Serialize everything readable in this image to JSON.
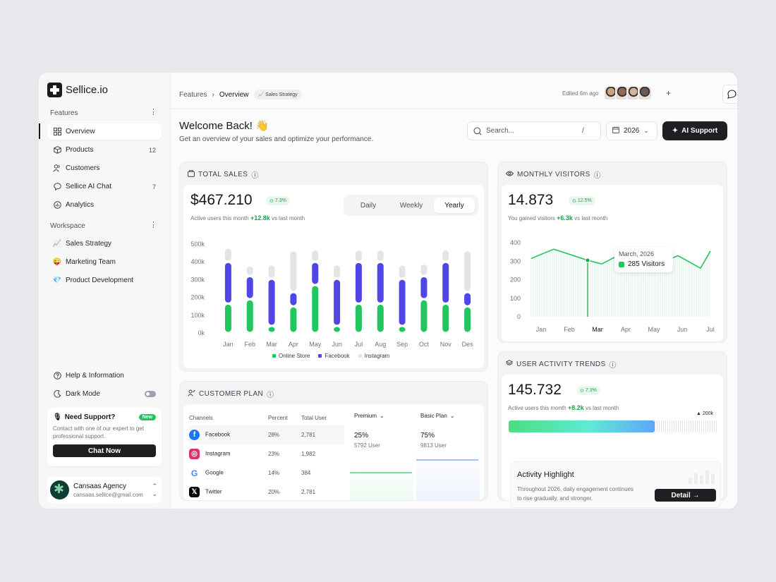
{
  "app": {
    "name": "Sellice.io"
  },
  "sidebar": {
    "features_label": "Features",
    "features": [
      {
        "label": "Overview",
        "icon": "grid-icon",
        "badge": ""
      },
      {
        "label": "Products",
        "icon": "box-icon",
        "badge": "12"
      },
      {
        "label": "Customers",
        "icon": "users-icon",
        "badge": ""
      },
      {
        "label": "Sellice AI Chat",
        "icon": "chat-icon",
        "badge": "7"
      },
      {
        "label": "Analytics",
        "icon": "analytics-icon",
        "badge": ""
      }
    ],
    "workspace_label": "Workspace",
    "workspaces": [
      {
        "label": "Sales Strategy",
        "emoji": "📈"
      },
      {
        "label": "Marketing Team",
        "emoji": "😜"
      },
      {
        "label": "Product Development",
        "emoji": "💎"
      }
    ],
    "help_label": "Help & Information",
    "dark_mode_label": "Dark Mode",
    "support": {
      "title": "Need Support?",
      "badge": "New",
      "text": "Contact with one of our expert to get professional support.",
      "button": "Chat Now"
    },
    "account": {
      "name": "Cansaas Agency",
      "email": "cansaas.sellice@gmail.com"
    }
  },
  "topbar": {
    "crumb_features": "Features",
    "crumb_overview": "Overview",
    "crumb_chip": "📈 Sales Strategy",
    "edited": "Edited 6m ago",
    "avatar_colors": [
      "#c9a27e",
      "#8f6b55",
      "#d4b5a0",
      "#6b5a52"
    ]
  },
  "welcome": {
    "title": "Welcome Back! 👋",
    "subtitle": "Get an overview of your sales and optimize your performance.",
    "search_placeholder": "Search...",
    "search_shortcut": "/",
    "year": "2026",
    "ai_button": "AI Support"
  },
  "total_sales": {
    "title": "TOTAL SALES",
    "value": "$467.210",
    "pct": "7.3%",
    "sub_prefix": "Active users this month",
    "sub_delta": "+12.8k",
    "sub_suffix": "vs last month",
    "tabs": [
      "Daily",
      "Weekly",
      "Yearly"
    ],
    "active_tab": "Yearly",
    "legend": [
      {
        "name": "Online Store",
        "color": "#22c55e"
      },
      {
        "name": "Facebook",
        "color": "#4f46e5"
      },
      {
        "name": "Instagram",
        "color": "#e4e4e7"
      }
    ]
  },
  "monthly_visitors": {
    "title": "MONTHLY VISITORS",
    "value": "14.873",
    "pct": "12.5%",
    "sub_prefix": "You gained visitors",
    "sub_delta": "+6.3k",
    "sub_suffix": "vs last month",
    "tooltip_date": "March, 2026",
    "tooltip_value": "285 Visitors"
  },
  "customer_plan": {
    "title": "CUSTOMER PLAN",
    "headers": [
      "Channels",
      "Percent",
      "Total User"
    ],
    "rows": [
      {
        "name": "Facebook",
        "percent": "28%",
        "users": "2,781",
        "icon": "facebook-icon",
        "color": "#1877f2"
      },
      {
        "name": "Instagram",
        "percent": "23%",
        "users": "1,982",
        "icon": "instagram-icon",
        "color": "#e1306c"
      },
      {
        "name": "Google",
        "percent": "14%",
        "users": "384",
        "icon": "google-icon",
        "color": "#4285f4"
      },
      {
        "name": "Twitter",
        "percent": "20%",
        "users": "2,781",
        "icon": "x-icon",
        "color": "#000000"
      }
    ],
    "plans": [
      {
        "name": "Premium",
        "percent": "25%",
        "users": "5792 User",
        "color": "#22c55e"
      },
      {
        "name": "Basic Plan",
        "percent": "75%",
        "users": "9813 User",
        "color": "#3b82f6"
      }
    ]
  },
  "user_activity": {
    "title": "USER ACTIVITY TRENDS",
    "value": "145.732",
    "pct": "7.3%",
    "sub_prefix": "Active users this month",
    "sub_delta": "+8.2k",
    "sub_suffix": "vs last month",
    "marker": "▲ 200k",
    "progress_fraction": 0.7,
    "highlight_title": "Activity Highlight",
    "highlight_text": "Throughout 2026, daily engagement continues to rise gradually, and stronger.",
    "detail_button": "Detail →"
  },
  "chart_data": [
    {
      "type": "bar",
      "title": "TOTAL SALES",
      "categories": [
        "Jan",
        "Feb",
        "Mar",
        "Apr",
        "May",
        "Jun",
        "Jul",
        "Aug",
        "Sep",
        "Oct",
        "Nov",
        "Des"
      ],
      "y_ticks": [
        "500k",
        "400k",
        "300k",
        "200k",
        "100k",
        "0k"
      ],
      "ylim": [
        0,
        500
      ],
      "series": [
        {
          "name": "Online Store",
          "color": "#22c55e",
          "values": [
            165,
            190,
            40,
            150,
            270,
            40,
            165,
            165,
            40,
            190,
            165,
            150
          ]
        },
        {
          "name": "Facebook",
          "color": "#4f46e5",
          "values": [
            235,
            130,
            265,
            80,
            130,
            265,
            235,
            235,
            265,
            130,
            235,
            80
          ]
        },
        {
          "name": "Instagram",
          "color": "#e4e4e7",
          "values": [
            80,
            60,
            80,
            235,
            70,
            80,
            70,
            70,
            80,
            70,
            70,
            235
          ]
        }
      ]
    },
    {
      "type": "area",
      "title": "MONTHLY VISITORS",
      "categories": [
        "Jan",
        "Feb",
        "Mar",
        "Apr",
        "May",
        "Jun",
        "Jul"
      ],
      "highlight": "Mar",
      "y_ticks": [
        "400",
        "300",
        "200",
        "100",
        "0"
      ],
      "ylim": [
        0,
        400
      ],
      "series": [
        {
          "name": "Visitors",
          "color": "#22c55e",
          "x": [
            0,
            0.8,
            2,
            2.5,
            3,
            4,
            4.5,
            5.2,
            6,
            6.35
          ],
          "values": [
            315,
            365,
            305,
            285,
            325,
            285,
            285,
            330,
            262,
            355
          ]
        }
      ]
    }
  ]
}
